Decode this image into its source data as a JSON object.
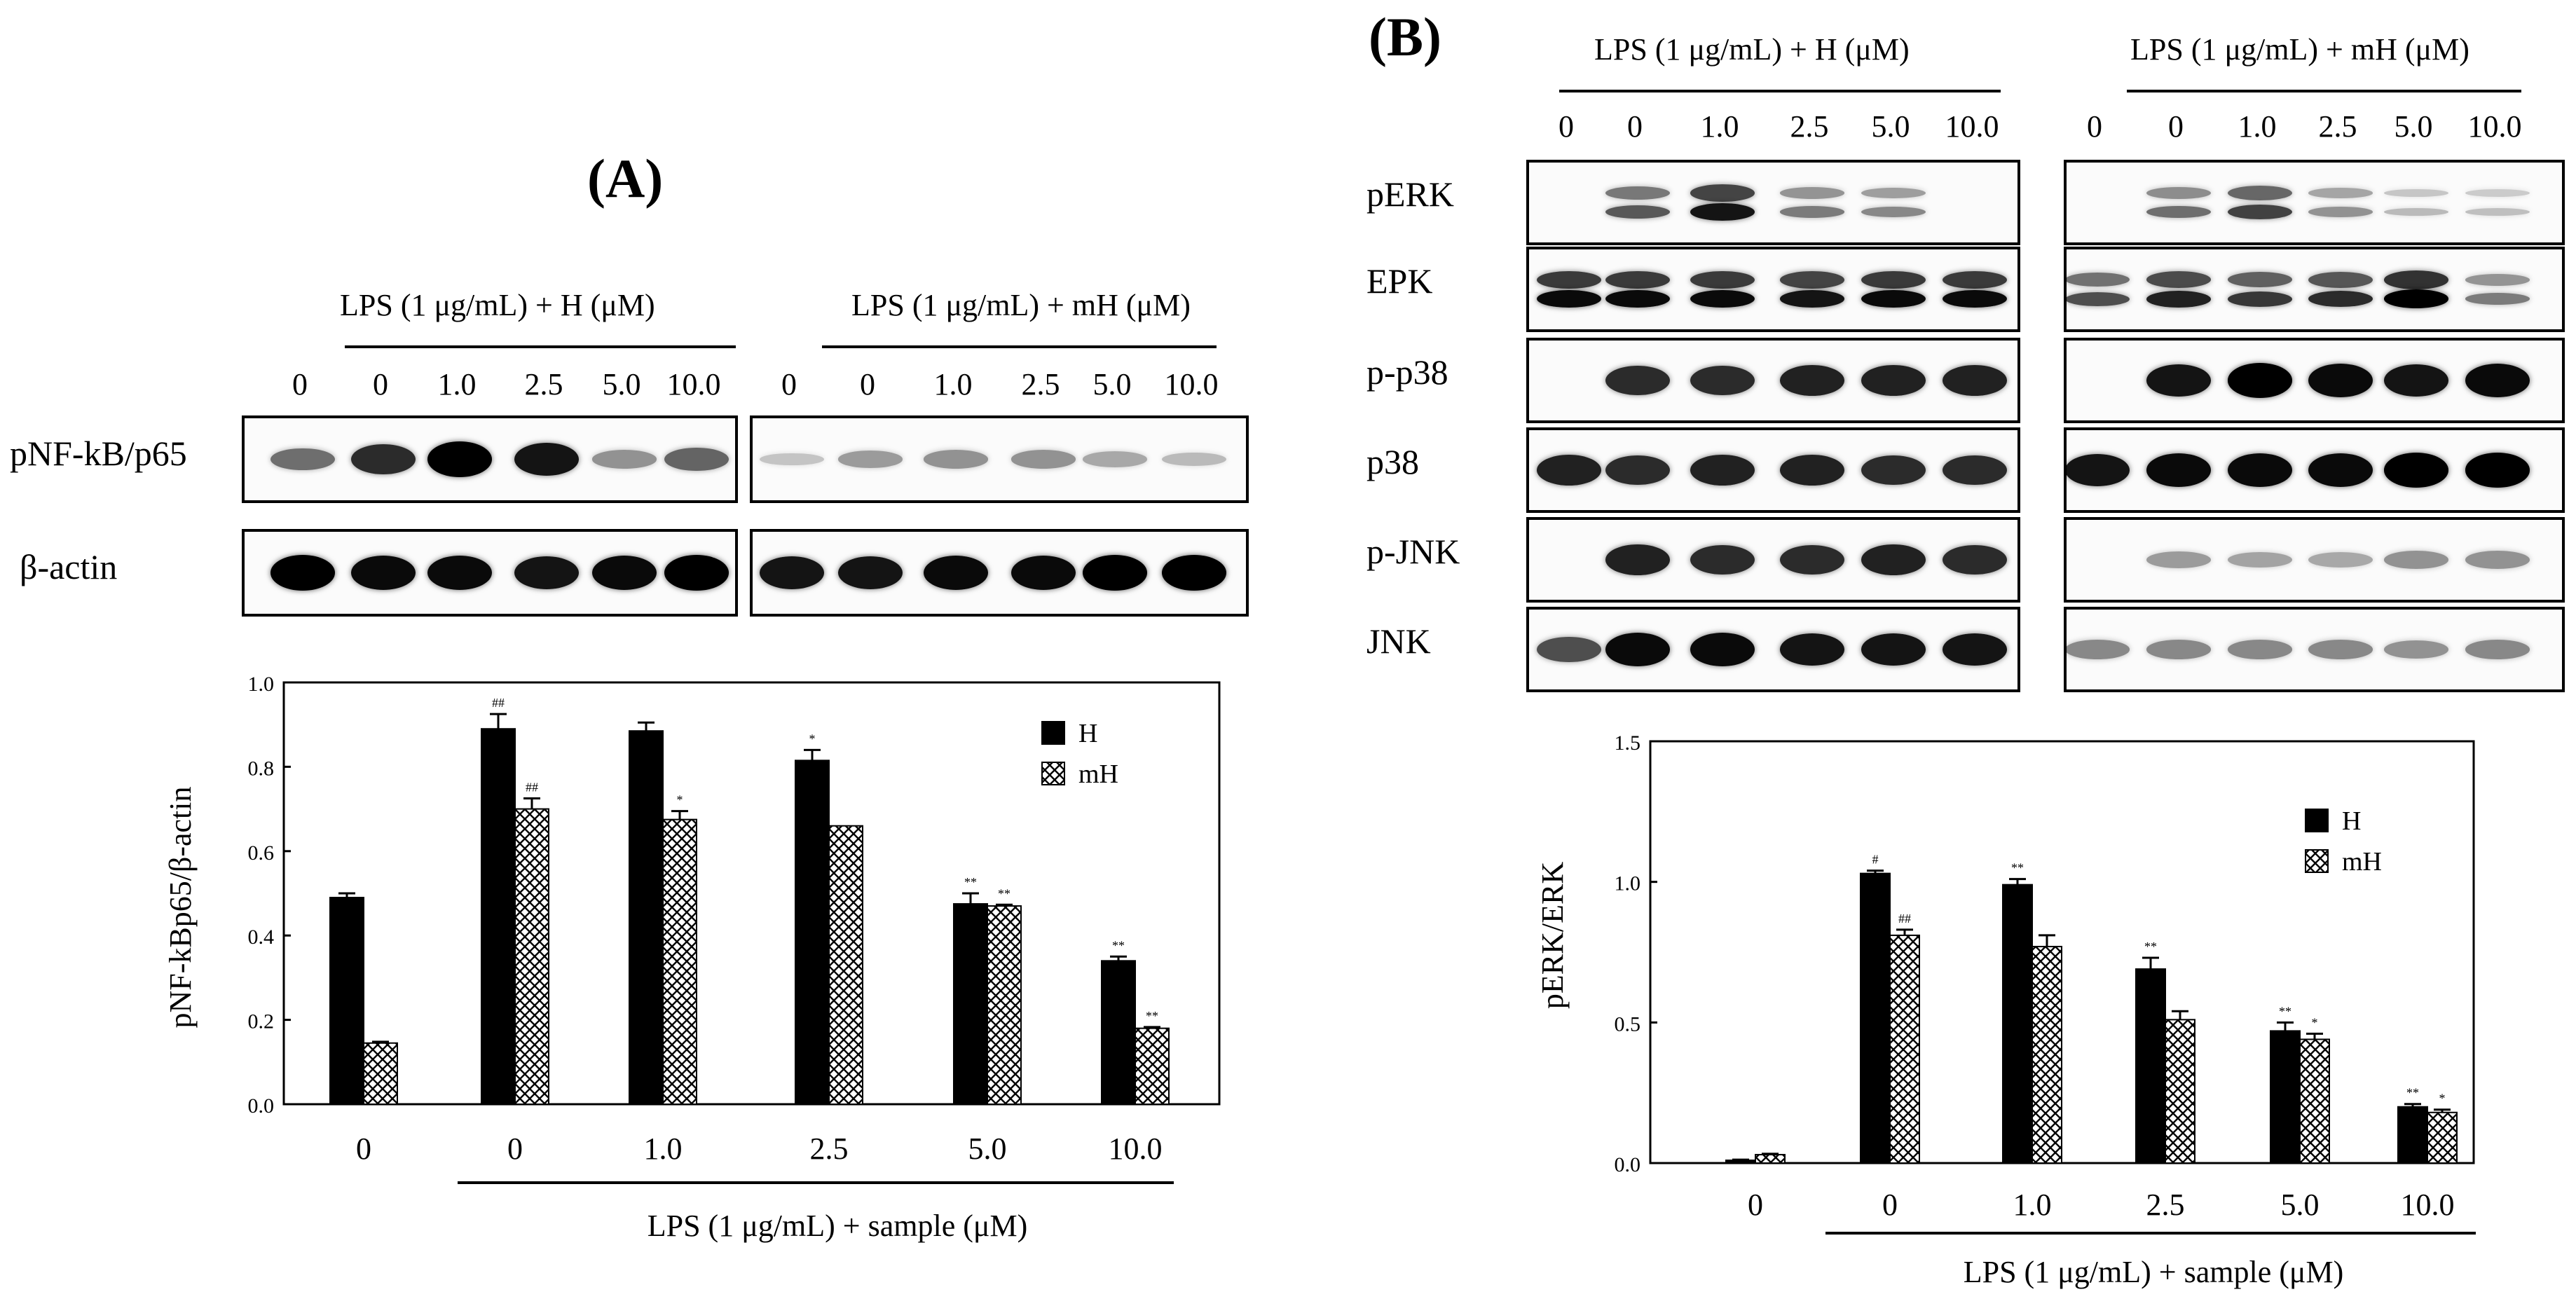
{
  "panelA": {
    "label": "(A)",
    "header_H": "LPS (1 μg/mL) + H (μM)",
    "header_mH": "LPS (1 μg/mL) + mH (μM)",
    "lanes_H": [
      "0",
      "0",
      "1.0",
      "2.5",
      "5.0",
      "10.0"
    ],
    "lanes_mH": [
      "0",
      "0",
      "1.0",
      "2.5",
      "5.0",
      "10.0"
    ],
    "blots": [
      {
        "name": "pNF-kB/p65",
        "H": [
          0.45,
          0.75,
          0.95,
          0.85,
          0.3,
          0.5
        ],
        "mH": [
          0.08,
          0.25,
          0.3,
          0.3,
          0.2,
          0.12
        ]
      },
      {
        "name": "β-actin",
        "H": [
          0.95,
          0.9,
          0.9,
          0.85,
          0.9,
          0.95
        ],
        "mH": [
          0.85,
          0.85,
          0.9,
          0.9,
          0.95,
          0.95
        ]
      }
    ]
  },
  "panelB": {
    "label": "(B)",
    "header_H": "LPS (1 μg/mL) + H (μM)",
    "header_mH": "LPS (1 μg/mL) + mH (μM)",
    "lanes_H": [
      "0",
      "0",
      "1.0",
      "2.5",
      "5.0",
      "10.0"
    ],
    "lanes_mH": [
      "0",
      "0",
      "1.0",
      "2.5",
      "5.0",
      "10.0"
    ],
    "blots": [
      {
        "name": "pERK",
        "H": [
          0.02,
          0.55,
          0.85,
          0.4,
          0.35,
          0.02
        ],
        "mH": [
          0.02,
          0.45,
          0.65,
          0.3,
          0.12,
          0.1
        ],
        "double": true
      },
      {
        "name": "EPK",
        "H": [
          0.9,
          0.9,
          0.9,
          0.85,
          0.9,
          0.9
        ],
        "mH": [
          0.6,
          0.8,
          0.7,
          0.75,
          0.95,
          0.4
        ],
        "double": true
      },
      {
        "name": "p-p38",
        "H": [
          0.02,
          0.75,
          0.75,
          0.8,
          0.8,
          0.8
        ],
        "mH": [
          0.03,
          0.85,
          0.95,
          0.9,
          0.85,
          0.9
        ]
      },
      {
        "name": "p38",
        "H": [
          0.8,
          0.75,
          0.8,
          0.8,
          0.75,
          0.75
        ],
        "mH": [
          0.85,
          0.9,
          0.9,
          0.9,
          0.95,
          0.95
        ]
      },
      {
        "name": "p-JNK",
        "H": [
          0.02,
          0.8,
          0.75,
          0.75,
          0.8,
          0.75
        ],
        "mH": [
          0.02,
          0.25,
          0.22,
          0.2,
          0.3,
          0.3
        ]
      },
      {
        "name": "JNK",
        "H": [
          0.6,
          0.9,
          0.9,
          0.85,
          0.85,
          0.85
        ],
        "mH": [
          0.35,
          0.35,
          0.35,
          0.35,
          0.3,
          0.35
        ]
      }
    ]
  },
  "chart_data": [
    {
      "type": "bar",
      "panel": "A",
      "categories": [
        "0",
        "0",
        "1.0",
        "2.5",
        "5.0",
        "10.0"
      ],
      "series": [
        {
          "name": "H",
          "values": [
            0.49,
            0.89,
            0.885,
            0.815,
            0.475,
            0.34
          ],
          "errors": [
            0.01,
            0.035,
            0.02,
            0.025,
            0.025,
            0.01
          ],
          "marks": [
            "",
            "##",
            "",
            "*",
            "**",
            "**"
          ]
        },
        {
          "name": "mH",
          "values": [
            0.145,
            0.7,
            0.675,
            0.66,
            0.47,
            0.18
          ],
          "errors": [
            0.003,
            0.025,
            0.02,
            0,
            0.003,
            0.003
          ],
          "marks": [
            "",
            "##",
            "*",
            "",
            "**",
            "**"
          ]
        }
      ],
      "ylabel": "pNF-kBp65/β-actin",
      "xlabel": "LPS (1 μg/mL) + sample (μM)",
      "ylim": [
        0,
        1.0
      ],
      "yticks": [
        "0.0",
        "0.2",
        "0.4",
        "0.6",
        "0.8",
        "1.0"
      ],
      "legend": "top-right",
      "colors": {
        "H": "#000000",
        "mH": "crosshatch"
      }
    },
    {
      "type": "bar",
      "panel": "B",
      "categories": [
        "0",
        "0",
        "1.0",
        "2.5",
        "5.0",
        "10.0"
      ],
      "series": [
        {
          "name": "H",
          "values": [
            0.01,
            1.03,
            0.99,
            0.69,
            0.47,
            0.2
          ],
          "errors": [
            0.002,
            0.01,
            0.02,
            0.04,
            0.03,
            0.01
          ],
          "marks": [
            "",
            "#",
            "**",
            "**",
            "**",
            "**"
          ]
        },
        {
          "name": "mH",
          "values": [
            0.03,
            0.81,
            0.77,
            0.51,
            0.44,
            0.18
          ],
          "errors": [
            0.003,
            0.02,
            0.04,
            0.03,
            0.02,
            0.01
          ],
          "marks": [
            "",
            "##",
            "",
            "",
            "*",
            "*"
          ]
        }
      ],
      "ylabel": "pERK/ERK",
      "xlabel": "LPS (1 μg/mL) + sample (μM)",
      "ylim": [
        0,
        1.5
      ],
      "yticks": [
        "0.0",
        "0.5",
        "1.0",
        "1.5"
      ],
      "legend": "top-right",
      "colors": {
        "H": "#000000",
        "mH": "crosshatch"
      }
    }
  ]
}
